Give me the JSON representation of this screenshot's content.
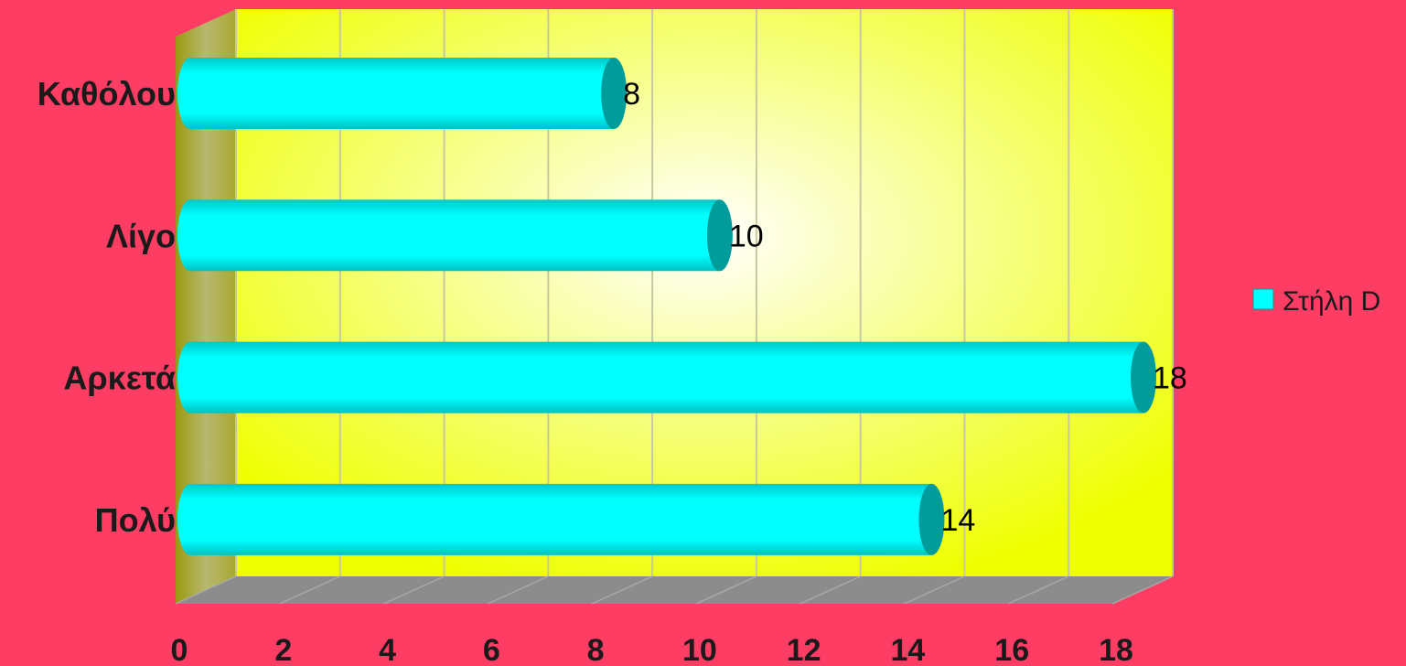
{
  "chart_data": {
    "type": "bar",
    "orientation": "horizontal",
    "style": "3d-cylinder",
    "categories": [
      "Καθόλου",
      "Λίγο",
      "Αρκετά",
      "Πολύ"
    ],
    "series": [
      {
        "name": "Στήλη D",
        "values": [
          8,
          10,
          18,
          14
        ],
        "color": "#00ffff"
      }
    ],
    "xlim": [
      0,
      18
    ],
    "xticks": [
      0,
      2,
      4,
      6,
      8,
      10,
      12,
      14,
      16,
      18
    ],
    "xtick_labels": [
      "0",
      "2",
      "4",
      "6",
      "8",
      "10",
      "12",
      "14",
      "16",
      "18"
    ],
    "data_labels": [
      "8",
      "10",
      "18",
      "14"
    ],
    "grid": true,
    "legend": {
      "position": "right",
      "entries": [
        "Στήλη D"
      ]
    },
    "colors": {
      "background": "#fd3d63",
      "plot_center": "#ffffff",
      "plot_edge": "#eeff00",
      "gridline": "#c8c8a0",
      "floor": "#8c8c8c",
      "wall": "#b4b400",
      "bar": "#00ffff",
      "bar_end": "#009b9b"
    }
  }
}
